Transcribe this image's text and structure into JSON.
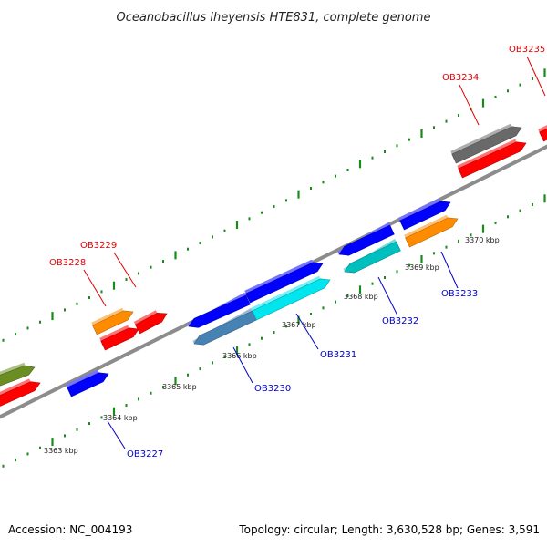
{
  "title": "Oceanobacillus iheyensis HTE831, complete genome",
  "footer": {
    "accession": "Accession: NC_004193",
    "summary": "Topology: circular; Length: 3,630,528 bp; Genes: 3,591"
  },
  "colors": {
    "backbone": "#8c8c8c",
    "tick": "#1a8a1a",
    "forward_label": "#e00000",
    "reverse_label": "#0000cc"
  },
  "scale": {
    "ticks": [
      {
        "label": "3363 kbp"
      },
      {
        "label": "3364 kbp"
      },
      {
        "label": "3365 kbp"
      },
      {
        "label": "3366 kbp"
      },
      {
        "label": "3367 kbp"
      },
      {
        "label": "3368 kbp"
      },
      {
        "label": "3369 kbp"
      },
      {
        "label": "3370 kbp"
      }
    ]
  },
  "labels": [
    {
      "text": "OB3227",
      "strand": "reverse"
    },
    {
      "text": "OB3228",
      "strand": "forward"
    },
    {
      "text": "OB3229",
      "strand": "forward"
    },
    {
      "text": "OB3230",
      "strand": "reverse"
    },
    {
      "text": "OB3231",
      "strand": "reverse"
    },
    {
      "text": "OB3232",
      "strand": "reverse"
    },
    {
      "text": "OB3233",
      "strand": "reverse"
    },
    {
      "text": "OB3234",
      "strand": "forward"
    },
    {
      "text": "OB3235",
      "strand": "forward"
    }
  ],
  "features": [
    {
      "name": "olive-feature",
      "color": "#6b8e23"
    },
    {
      "name": "red-feature",
      "color": "#ff0000"
    },
    {
      "name": "blue-feature",
      "color": "#0000ff"
    },
    {
      "name": "orange-feature",
      "color": "#ff8c00"
    },
    {
      "name": "steelblue-feature",
      "color": "#4682b4"
    },
    {
      "name": "cyan-feature",
      "color": "#00e5ee"
    },
    {
      "name": "teal-feature",
      "color": "#00bfbf"
    },
    {
      "name": "gray-feature",
      "color": "#696969"
    }
  ]
}
